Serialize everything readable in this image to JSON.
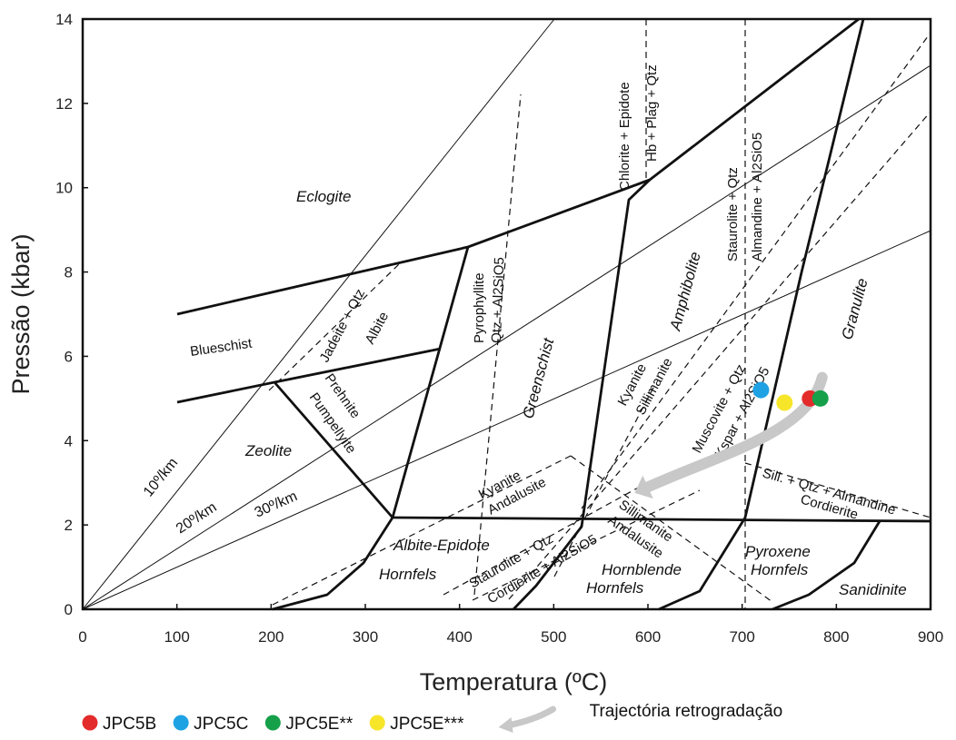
{
  "chart_data": {
    "type": "scatter",
    "xlabel": "Temperatura (ºC)",
    "ylabel": "Pressão (kbar)",
    "xlim": [
      0,
      900
    ],
    "ylim": [
      0,
      14
    ],
    "x_ticks": [
      "0",
      "100",
      "200",
      "300",
      "400",
      "500",
      "600",
      "700",
      "800",
      "900"
    ],
    "y_ticks": [
      "0",
      "2",
      "4",
      "6",
      "8",
      "10",
      "12",
      "14"
    ],
    "grid": false,
    "legend_position": "bottom",
    "series": [
      {
        "name": "JPC5B",
        "color": "#e32b2b",
        "x": 772,
        "y": 5.0
      },
      {
        "name": "JPC5C",
        "color": "#1ea2e4",
        "x": 720,
        "y": 5.2
      },
      {
        "name": "JPC5E**",
        "color": "#16a04a",
        "x": 783,
        "y": 5.0
      },
      {
        "name": "JPC5E***",
        "color": "#f7e52a",
        "x": 745,
        "y": 4.9
      }
    ],
    "trajectory": {
      "name": "Trajectória retrogradação",
      "color": "#c8c8c8",
      "points": [
        [
          785,
          5.5
        ],
        [
          770,
          4.2
        ],
        [
          680,
          3.7
        ],
        [
          600,
          2.9
        ]
      ]
    },
    "geotherms": [
      {
        "label": "10º/km",
        "to": [
          500,
          14.0
        ]
      },
      {
        "label": "20º/km",
        "to": [
          900,
          12.9
        ]
      },
      {
        "label": "30º/km",
        "to": [
          900,
          9.0
        ]
      }
    ],
    "facies_labels": [
      "Eclogite",
      "Blueschist",
      "Zeolite",
      "Prehnite",
      "Pumpellyite",
      "Greenschist",
      "Amphibolite",
      "Granulite",
      "Albite-Epidote",
      "Hornfels",
      "Hornblende",
      "Hornfels",
      "Pyroxene",
      "Hornfels",
      "Sanidinite"
    ],
    "reaction_labels": [
      "Jadeite + Qtz",
      "Albite",
      "Pyrophyllite",
      "Qtz + Al2SiO5",
      "Chlorite + Epidote",
      "Hb + Plag + Qtz",
      "Staurolite + Qtz",
      "Almandine + Al2SiO5",
      "Kyanite",
      "Sillimanite",
      "Kyanite",
      "Andalusite",
      "Sillimanite",
      "Andalusite",
      "Staurolite + Qtz",
      "Cordierite + Al2SiO5",
      "Muscovite + Qtz",
      "Kspar + Al2SiO5",
      "Sill. + Qtz + Almandine",
      "Cordierite"
    ]
  }
}
